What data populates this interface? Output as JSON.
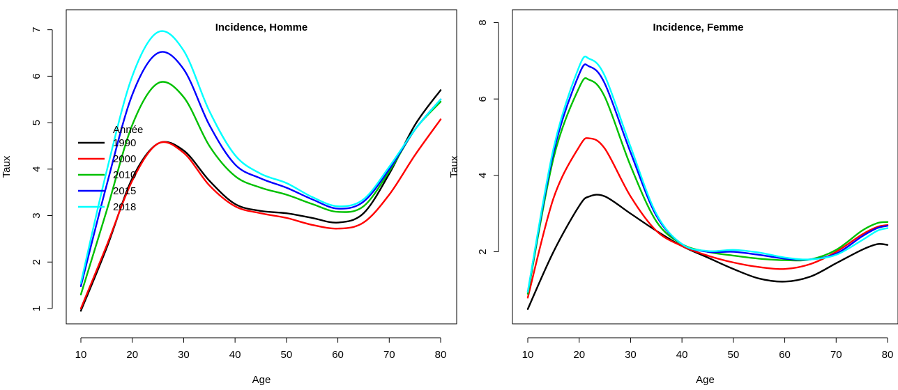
{
  "chart_data": [
    {
      "type": "line",
      "title": "Incidence, Homme",
      "xlabel": "Age",
      "ylabel": "Taux",
      "xlim": [
        10,
        80
      ],
      "ylim": [
        0.7,
        7.4
      ],
      "xticks": [
        10,
        20,
        30,
        40,
        50,
        60,
        70,
        80
      ],
      "yticks": [
        1,
        2,
        3,
        4,
        5,
        6,
        7
      ],
      "y_tick_rotation": "vertical",
      "legend": {
        "title": "Année",
        "placement": "left",
        "entries": [
          "1990",
          "2000",
          "2010",
          "2015",
          "2018"
        ]
      },
      "x": [
        10,
        15,
        20,
        25,
        30,
        35,
        40,
        45,
        50,
        55,
        60,
        65,
        70,
        75,
        80
      ],
      "series": [
        {
          "name": "1990",
          "color": "#000000",
          "values": [
            0.95,
            2.3,
            3.8,
            4.55,
            4.4,
            3.75,
            3.25,
            3.1,
            3.05,
            2.95,
            2.85,
            3.05,
            3.9,
            4.95,
            5.7
          ]
        },
        {
          "name": "2000",
          "color": "#ff0000",
          "values": [
            1.0,
            2.35,
            3.75,
            4.55,
            4.35,
            3.65,
            3.2,
            3.05,
            2.95,
            2.8,
            2.72,
            2.85,
            3.45,
            4.3,
            5.07
          ]
        },
        {
          "name": "2010",
          "color": "#00c000",
          "values": [
            1.3,
            3.1,
            4.95,
            5.85,
            5.55,
            4.5,
            3.85,
            3.6,
            3.45,
            3.25,
            3.08,
            3.2,
            3.95,
            4.85,
            5.45
          ]
        },
        {
          "name": "2015",
          "color": "#0000ff",
          "values": [
            1.48,
            3.65,
            5.6,
            6.5,
            6.15,
            4.95,
            4.1,
            3.8,
            3.6,
            3.35,
            3.15,
            3.3,
            4.0,
            4.85,
            5.5
          ]
        },
        {
          "name": "2018",
          "color": "#00ffff",
          "values": [
            1.55,
            3.95,
            6.0,
            6.95,
            6.55,
            5.25,
            4.3,
            3.9,
            3.7,
            3.4,
            3.2,
            3.35,
            4.05,
            4.85,
            5.5
          ]
        }
      ]
    },
    {
      "type": "line",
      "title": "Incidence, Femme",
      "xlabel": "Age",
      "ylabel": "Taux",
      "xlim": [
        10,
        80
      ],
      "ylim": [
        0.15,
        8.3
      ],
      "xticks": [
        10,
        20,
        30,
        40,
        50,
        60,
        70,
        80
      ],
      "yticks": [
        2,
        4,
        6,
        8
      ],
      "y_tick_rotation": "vertical",
      "x": [
        10,
        15,
        20,
        22,
        25,
        30,
        35,
        40,
        45,
        50,
        55,
        60,
        65,
        70,
        75,
        78,
        80
      ],
      "series": [
        {
          "name": "1990",
          "color": "#000000",
          "values": [
            0.5,
            2.0,
            3.2,
            3.45,
            3.45,
            3.0,
            2.55,
            2.15,
            1.85,
            1.55,
            1.3,
            1.22,
            1.35,
            1.7,
            2.05,
            2.2,
            2.18
          ]
        },
        {
          "name": "2000",
          "color": "#ff0000",
          "values": [
            0.8,
            3.4,
            4.75,
            4.97,
            4.7,
            3.45,
            2.55,
            2.15,
            1.9,
            1.72,
            1.6,
            1.55,
            1.68,
            2.0,
            2.45,
            2.65,
            2.7
          ]
        },
        {
          "name": "2010",
          "color": "#00c000",
          "values": [
            0.9,
            4.45,
            6.3,
            6.5,
            6.05,
            4.25,
            2.8,
            2.2,
            2.0,
            1.9,
            1.82,
            1.78,
            1.8,
            2.05,
            2.55,
            2.75,
            2.78
          ]
        },
        {
          "name": "2015",
          "color": "#0000ff",
          "values": [
            0.95,
            4.6,
            6.65,
            6.85,
            6.4,
            4.6,
            2.95,
            2.2,
            2.0,
            2.0,
            1.92,
            1.82,
            1.8,
            1.95,
            2.4,
            2.62,
            2.68
          ]
        },
        {
          "name": "2018",
          "color": "#00ffff",
          "values": [
            0.95,
            4.7,
            6.85,
            7.05,
            6.6,
            4.75,
            3.0,
            2.2,
            2.02,
            2.05,
            1.98,
            1.85,
            1.8,
            1.92,
            2.3,
            2.55,
            2.62
          ]
        }
      ]
    }
  ]
}
